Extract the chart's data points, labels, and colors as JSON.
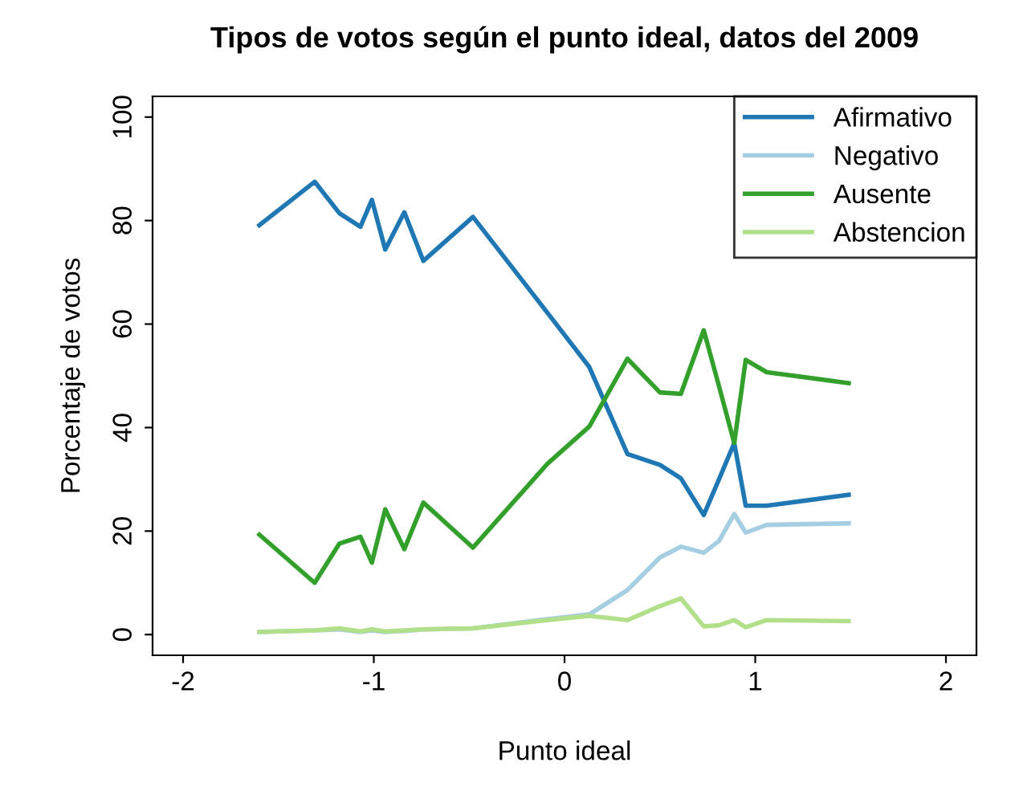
{
  "chart_data": {
    "type": "line",
    "title": "Tipos de votos según el punto ideal, datos del 2009",
    "xlabel": "Punto ideal",
    "ylabel": "Porcentaje de votos",
    "x": [
      -1.6,
      -1.31,
      -1.18,
      -1.07,
      -1.01,
      -0.94,
      -0.84,
      -0.74,
      -0.48,
      -0.09,
      0.13,
      0.33,
      0.5,
      0.61,
      0.73,
      0.81,
      0.89,
      0.95,
      1.06,
      1.49
    ],
    "series": [
      {
        "name": "Afirmativo",
        "color": "#1f78b4",
        "values": [
          79.1,
          87.5,
          81.4,
          78.8,
          84.0,
          74.4,
          81.6,
          72.2,
          80.7,
          62.2,
          51.7,
          34.9,
          32.8,
          30.2,
          23.1,
          30.0,
          37.0,
          24.9,
          24.9,
          27.0
        ]
      },
      {
        "name": "Negativo",
        "color": "#a6cee3",
        "values": [
          0.5,
          0.8,
          1.0,
          0.5,
          0.8,
          0.5,
          0.7,
          1.0,
          1.2,
          3.0,
          3.9,
          8.6,
          14.9,
          17.0,
          15.8,
          18.1,
          23.3,
          19.7,
          21.2,
          21.5
        ]
      },
      {
        "name": "Ausente",
        "color": "#33a02c",
        "values": [
          19.3,
          10.0,
          17.6,
          18.9,
          13.9,
          24.2,
          16.5,
          25.5,
          16.8,
          33.0,
          40.2,
          53.3,
          46.8,
          46.5,
          58.8,
          48.0,
          37.0,
          53.1,
          50.7,
          48.6
        ]
      },
      {
        "name": "Abstencion",
        "color": "#b2df8a",
        "values": [
          0.5,
          0.8,
          1.2,
          0.6,
          1.0,
          0.6,
          0.8,
          1.0,
          1.2,
          2.8,
          3.6,
          2.8,
          5.5,
          7.0,
          1.6,
          1.8,
          2.8,
          1.4,
          2.8,
          2.6
        ]
      }
    ],
    "xlim": [
      -2.16,
      2.16
    ],
    "ylim": [
      -4,
      104
    ],
    "xticks": [
      -2,
      -1,
      0,
      1,
      2
    ],
    "yticks": [
      0,
      20,
      40,
      60,
      80,
      100
    ],
    "grid": false,
    "legend": "top right",
    "marker": "none",
    "line_style": "solid"
  }
}
